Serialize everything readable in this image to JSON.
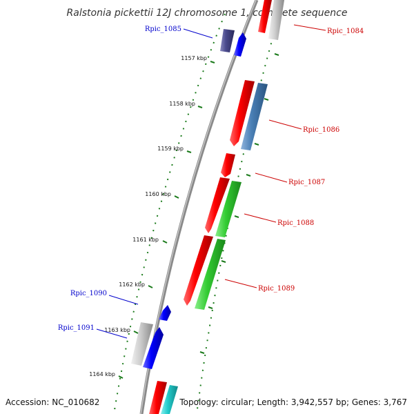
{
  "title": "Ralstonia pickettii 12J chromosome 1, complete sequence",
  "accession": "Accession: NC_010682",
  "summary": "Topology: circular; Length: 3,942,557 bp; Genes: 3,767",
  "ticks": [
    {
      "label": "1157 kbp"
    },
    {
      "label": "1158 kbp"
    },
    {
      "label": "1159 kbp"
    },
    {
      "label": "1160 kbp"
    },
    {
      "label": "1161 kbp"
    },
    {
      "label": "1162 kbp"
    },
    {
      "label": "1163 kbp"
    },
    {
      "label": "1164 kbp"
    }
  ],
  "genes": [
    {
      "name": "Rpic_1084",
      "color": "#cc0000"
    },
    {
      "name": "Rpic_1085",
      "color": "#0000cc"
    },
    {
      "name": "Rpic_1086",
      "color": "#cc0000"
    },
    {
      "name": "Rpic_1087",
      "color": "#cc0000"
    },
    {
      "name": "Rpic_1088",
      "color": "#cc0000"
    },
    {
      "name": "Rpic_1089",
      "color": "#cc0000"
    },
    {
      "name": "Rpic_1090",
      "color": "#0000cc"
    },
    {
      "name": "Rpic_1091",
      "color": "#0000cc"
    }
  ],
  "colors": {
    "red": "#ff0000",
    "blue": "#0000ff",
    "navy": "#4a4a8c",
    "steelblue": "#4a7fb5",
    "green": "#33cc33",
    "gray": "#bdbdbd",
    "cyan": "#22cccc",
    "tick": "#1a7a1a"
  }
}
